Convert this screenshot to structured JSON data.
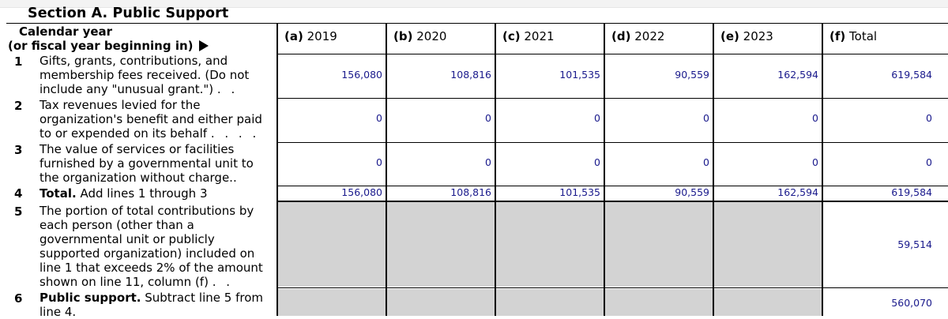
{
  "section_title": "Section A. Public Support",
  "calendar_label_line1": "Calendar year",
  "calendar_label_line2": "(or fiscal year beginning in)",
  "arrow_icon": "right-triangle-arrow",
  "columns": [
    {
      "key": "(a)",
      "year": "2019"
    },
    {
      "key": "(b)",
      "year": "2020"
    },
    {
      "key": "(c)",
      "year": "2021"
    },
    {
      "key": "(d)",
      "year": "2022"
    },
    {
      "key": "(e)",
      "year": "2023"
    },
    {
      "key": "(f)",
      "year": "Total"
    }
  ],
  "lines": [
    {
      "num": "1",
      "text1": "Gifts, grants, contributions, and",
      "text2": "membership fees received. (Do not",
      "text3": "include any \"unusual grant.\")",
      "dots": ". ."
    },
    {
      "num": "2",
      "text1": "Tax revenues levied for the",
      "text2": "organization's benefit and either paid",
      "text3": "to or expended on its behalf",
      "dots": ". . . ."
    },
    {
      "num": "3",
      "text1": "The value of services or facilities",
      "text2": "furnished by a governmental unit to",
      "text3": "the organization without charge.."
    },
    {
      "num": "4",
      "bold": "Total.",
      "text1": "Add lines 1 through 3"
    },
    {
      "num": "5",
      "text1": "The portion of total contributions by",
      "text2": "each person (other than a",
      "text3": "governmental unit or publicly",
      "text4": "supported organization) included on",
      "text5": "line 1 that exceeds 2% of the amount",
      "text6": "shown on line 11, column (f)",
      "dots": ". ."
    },
    {
      "num": "6",
      "bold": "Public support.",
      "text1": "Subtract line 5 from",
      "text2": "line 4."
    }
  ],
  "values": {
    "row1": [
      "156,080",
      "108,816",
      "101,535",
      "90,559",
      "162,594",
      "619,584"
    ],
    "row2": [
      "0",
      "0",
      "0",
      "0",
      "0",
      "0"
    ],
    "row3": [
      "0",
      "0",
      "0",
      "0",
      "0",
      "0"
    ],
    "row4": [
      "156,080",
      "108,816",
      "101,535",
      "90,559",
      "162,594",
      "619,584"
    ],
    "row5_total": "59,514",
    "row6_total": "560,070"
  },
  "colors": {
    "value_text": "#1a1a8c",
    "shaded_cell": "#d3d3d3"
  }
}
